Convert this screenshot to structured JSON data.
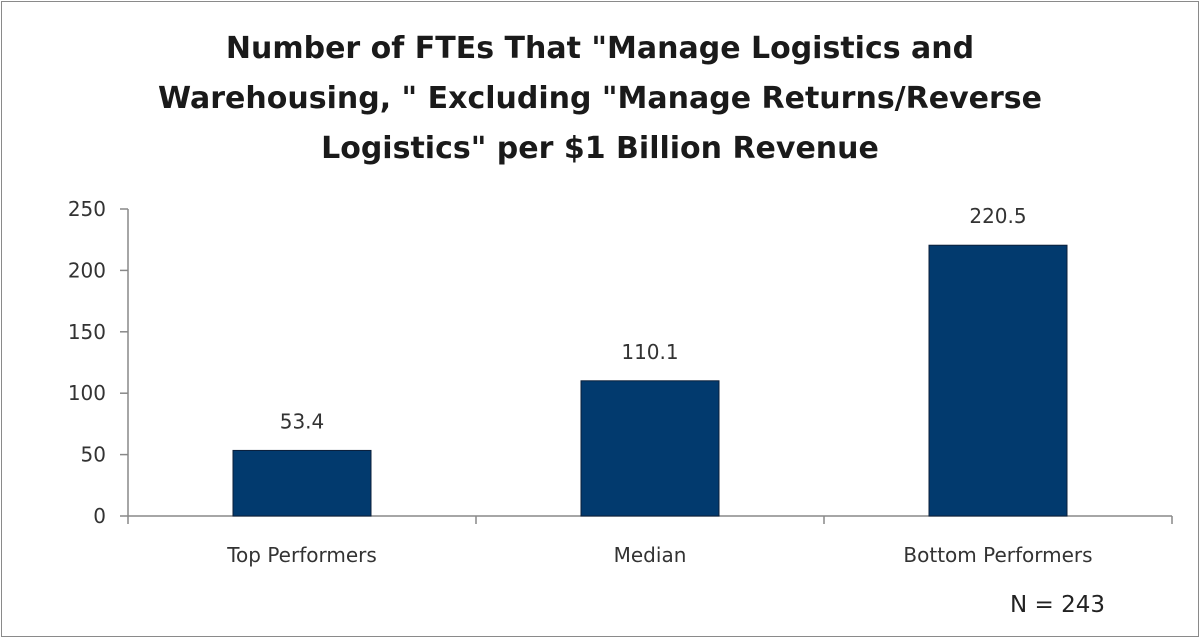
{
  "chart_data": {
    "type": "bar",
    "title_lines": [
      "Number of FTEs That \"Manage Logistics and",
      "Warehousing, \" Excluding \"Manage Returns/Reverse",
      "Logistics\" per $1 Billion Revenue"
    ],
    "categories": [
      "Top Performers",
      "Median",
      "Bottom Performers"
    ],
    "values": [
      53.4,
      110.1,
      220.5
    ],
    "value_labels": [
      "53.4",
      "110.1",
      "220.5"
    ],
    "yticks": [
      "0",
      "50",
      "100",
      "150",
      "200",
      "250"
    ],
    "ylim": [
      0,
      250
    ],
    "xlabel": "",
    "ylabel": "",
    "grid": false,
    "legend": "none",
    "bar_color": "#023a6e",
    "note": "N = 243"
  }
}
